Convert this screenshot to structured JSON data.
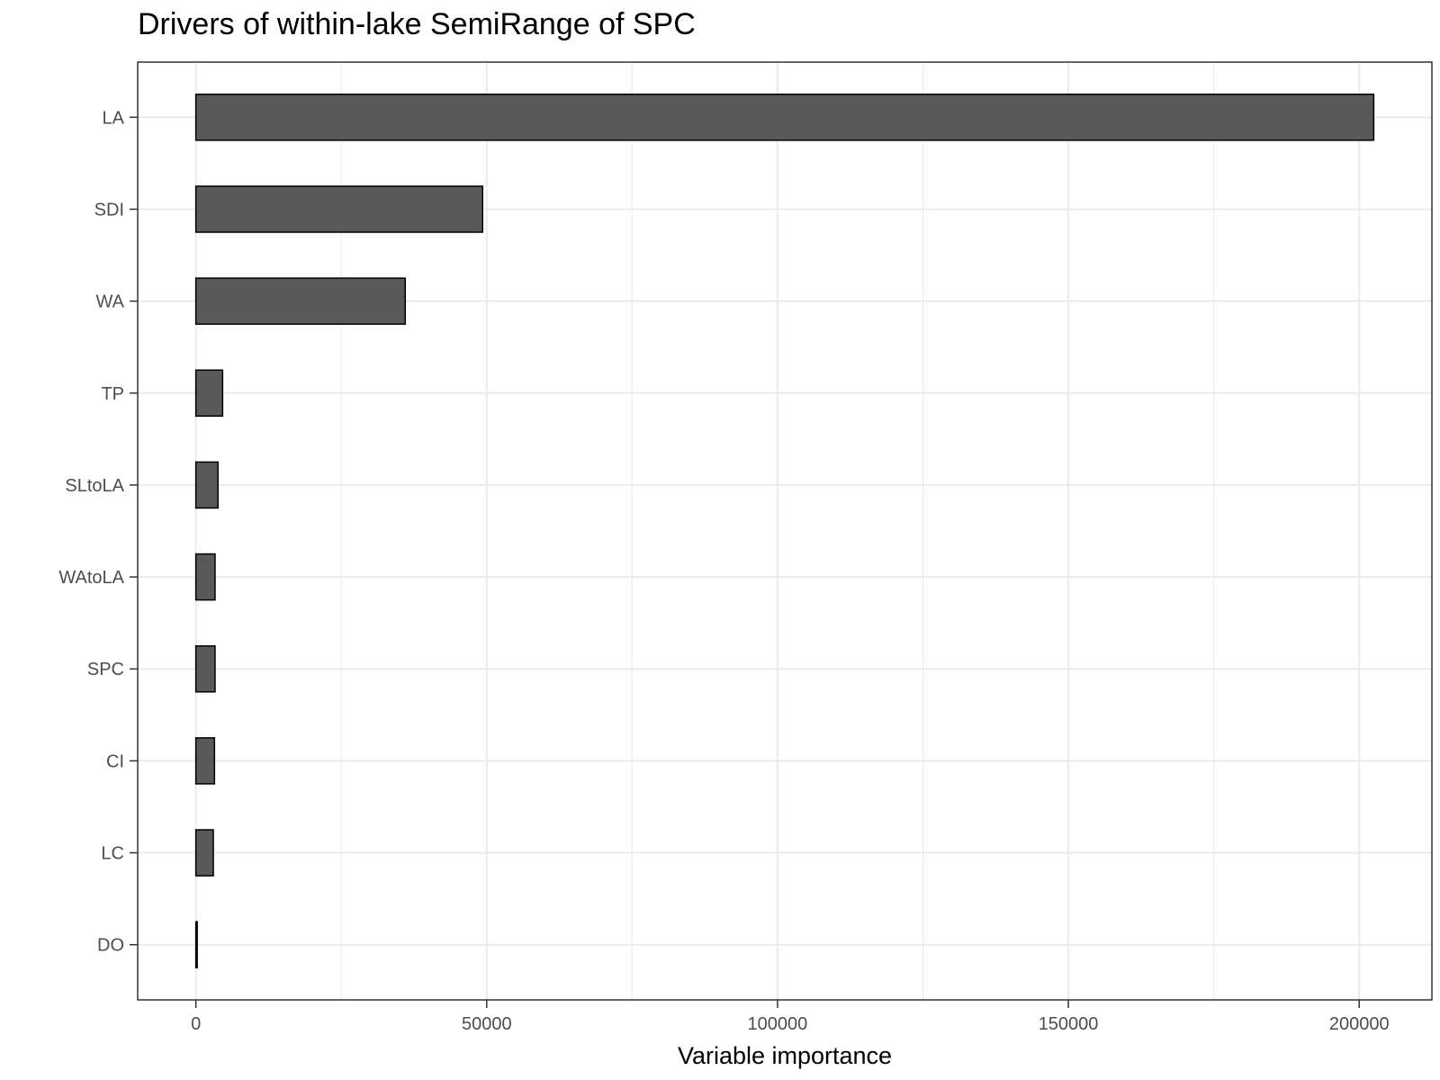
{
  "chart_data": {
    "type": "bar",
    "orientation": "horizontal",
    "title": "Drivers of within-lake SemiRange of SPC",
    "xlabel": "Variable importance",
    "ylabel": "",
    "categories": [
      "LA",
      "SDI",
      "WA",
      "TP",
      "SLtoLA",
      "WAtoLA",
      "SPC",
      "CI",
      "LC",
      "DO"
    ],
    "values": [
      202500,
      49300,
      36000,
      4600,
      3800,
      3300,
      3300,
      3200,
      3000,
      200
    ],
    "xlim": [
      -10000,
      212500
    ],
    "xticks": [
      0,
      50000,
      100000,
      150000,
      200000
    ],
    "xtick_labels": [
      "0",
      "50000",
      "100000",
      "150000",
      "200000"
    ],
    "grid": true,
    "bar_fill": "#595959",
    "bar_stroke": "#000000",
    "grid_color": "#ebebeb",
    "panel_border_color": "#333333"
  }
}
